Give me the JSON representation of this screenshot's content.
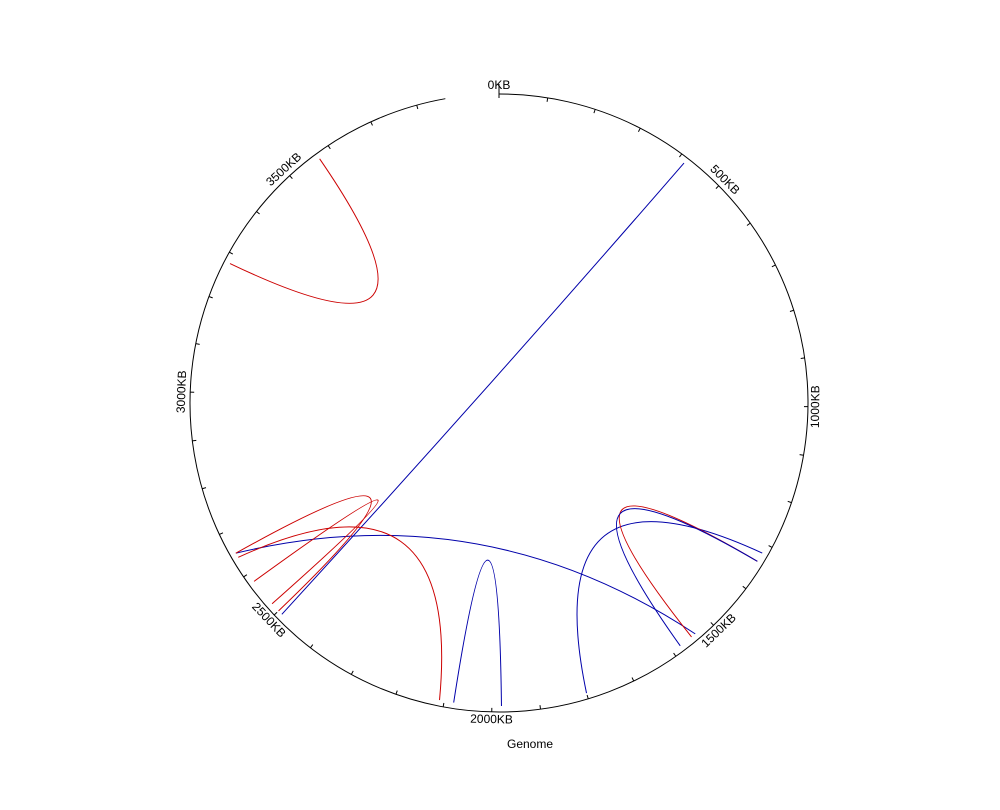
{
  "genome": {
    "label": "Genome",
    "size_kb": 3860,
    "tick_step_kb": 100,
    "major_tick_step_kb": 500
  },
  "tick_labels": [
    {
      "value_kb": 0,
      "text": "0KB"
    },
    {
      "value_kb": 500,
      "text": "500KB"
    },
    {
      "value_kb": 1000,
      "text": "1000KB"
    },
    {
      "value_kb": 1500,
      "text": "1500KB"
    },
    {
      "value_kb": 2000,
      "text": "2000KB"
    },
    {
      "value_kb": 2500,
      "text": "2500KB"
    },
    {
      "value_kb": 3000,
      "text": "3000KB"
    },
    {
      "value_kb": 3500,
      "text": "3500KB"
    }
  ],
  "colors": {
    "axis": "#000000",
    "red_link": "#cc0000",
    "blue_link": "#0000aa"
  },
  "links": [
    {
      "color": "blue",
      "from_kb": 415,
      "to_kb": 2490
    },
    {
      "color": "red",
      "from_kb": 3570,
      "to_kb": 3280
    },
    {
      "color": "blue",
      "from_kb": 2650,
      "to_kb": 1540
    },
    {
      "color": "red",
      "from_kb": 2640,
      "to_kb": 2110
    },
    {
      "color": "red",
      "from_kb": 2580,
      "to_kb": 2520
    },
    {
      "color": "red",
      "from_kb": 2650,
      "to_kb": 2500
    },
    {
      "color": "blue",
      "from_kb": 2080,
      "to_kb": 1980
    },
    {
      "color": "blue",
      "from_kb": 1320,
      "to_kb": 1800
    },
    {
      "color": "red",
      "from_kb": 1340,
      "to_kb": 1550
    },
    {
      "color": "blue",
      "from_kb": 1340,
      "to_kb": 1580
    }
  ]
}
